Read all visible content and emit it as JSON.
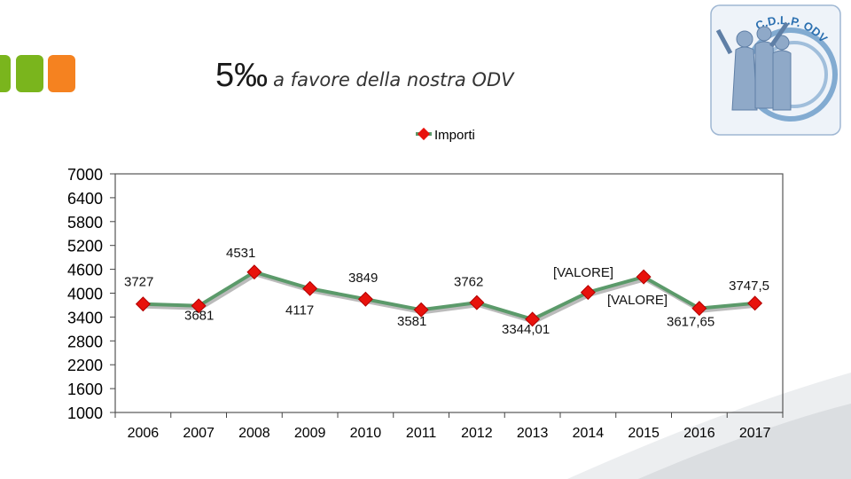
{
  "slide": {
    "title_main": "5‰",
    "title_sub": "a favore della nostra ODV",
    "logo_text": "C.D.L.P. ODV"
  },
  "colors": {
    "accent_green": "#7ab51d",
    "accent_orange": "#f58220",
    "line": "#5b9a6a",
    "marker": "#e8120c",
    "marker_stroke": "#b00000",
    "logo_blue": "#2a6fb0"
  },
  "icons": [
    "accent-bars-icon",
    "logo-people-icon"
  ],
  "chart_data": {
    "type": "line",
    "title": "",
    "xlabel": "",
    "ylabel": "",
    "legend": {
      "entries": [
        "Importi"
      ],
      "position": "top-center"
    },
    "grid": false,
    "ylim": [
      1000,
      7000
    ],
    "yticks": [
      "7000",
      "6400",
      "5800",
      "5200",
      "4600",
      "4000",
      "3400",
      "2800",
      "2200",
      "1600",
      "1000"
    ],
    "categories": [
      "2006",
      "2007",
      "2008",
      "2009",
      "2010",
      "2011",
      "2012",
      "2013",
      "2014",
      "2015",
      "2016",
      "2017"
    ],
    "series": [
      {
        "name": "Importi",
        "values": [
          3727,
          3681,
          4531,
          4117,
          3849,
          3581,
          3762,
          3344.01,
          4020,
          4410,
          3617.65,
          3747.5
        ],
        "labels": [
          "3727",
          "3681",
          "4531",
          "4117",
          "3849",
          "3581",
          "3762",
          "3344,01",
          "[VALORE]",
          "[VALORE]",
          "3617,65",
          "3747,5"
        ]
      }
    ]
  }
}
